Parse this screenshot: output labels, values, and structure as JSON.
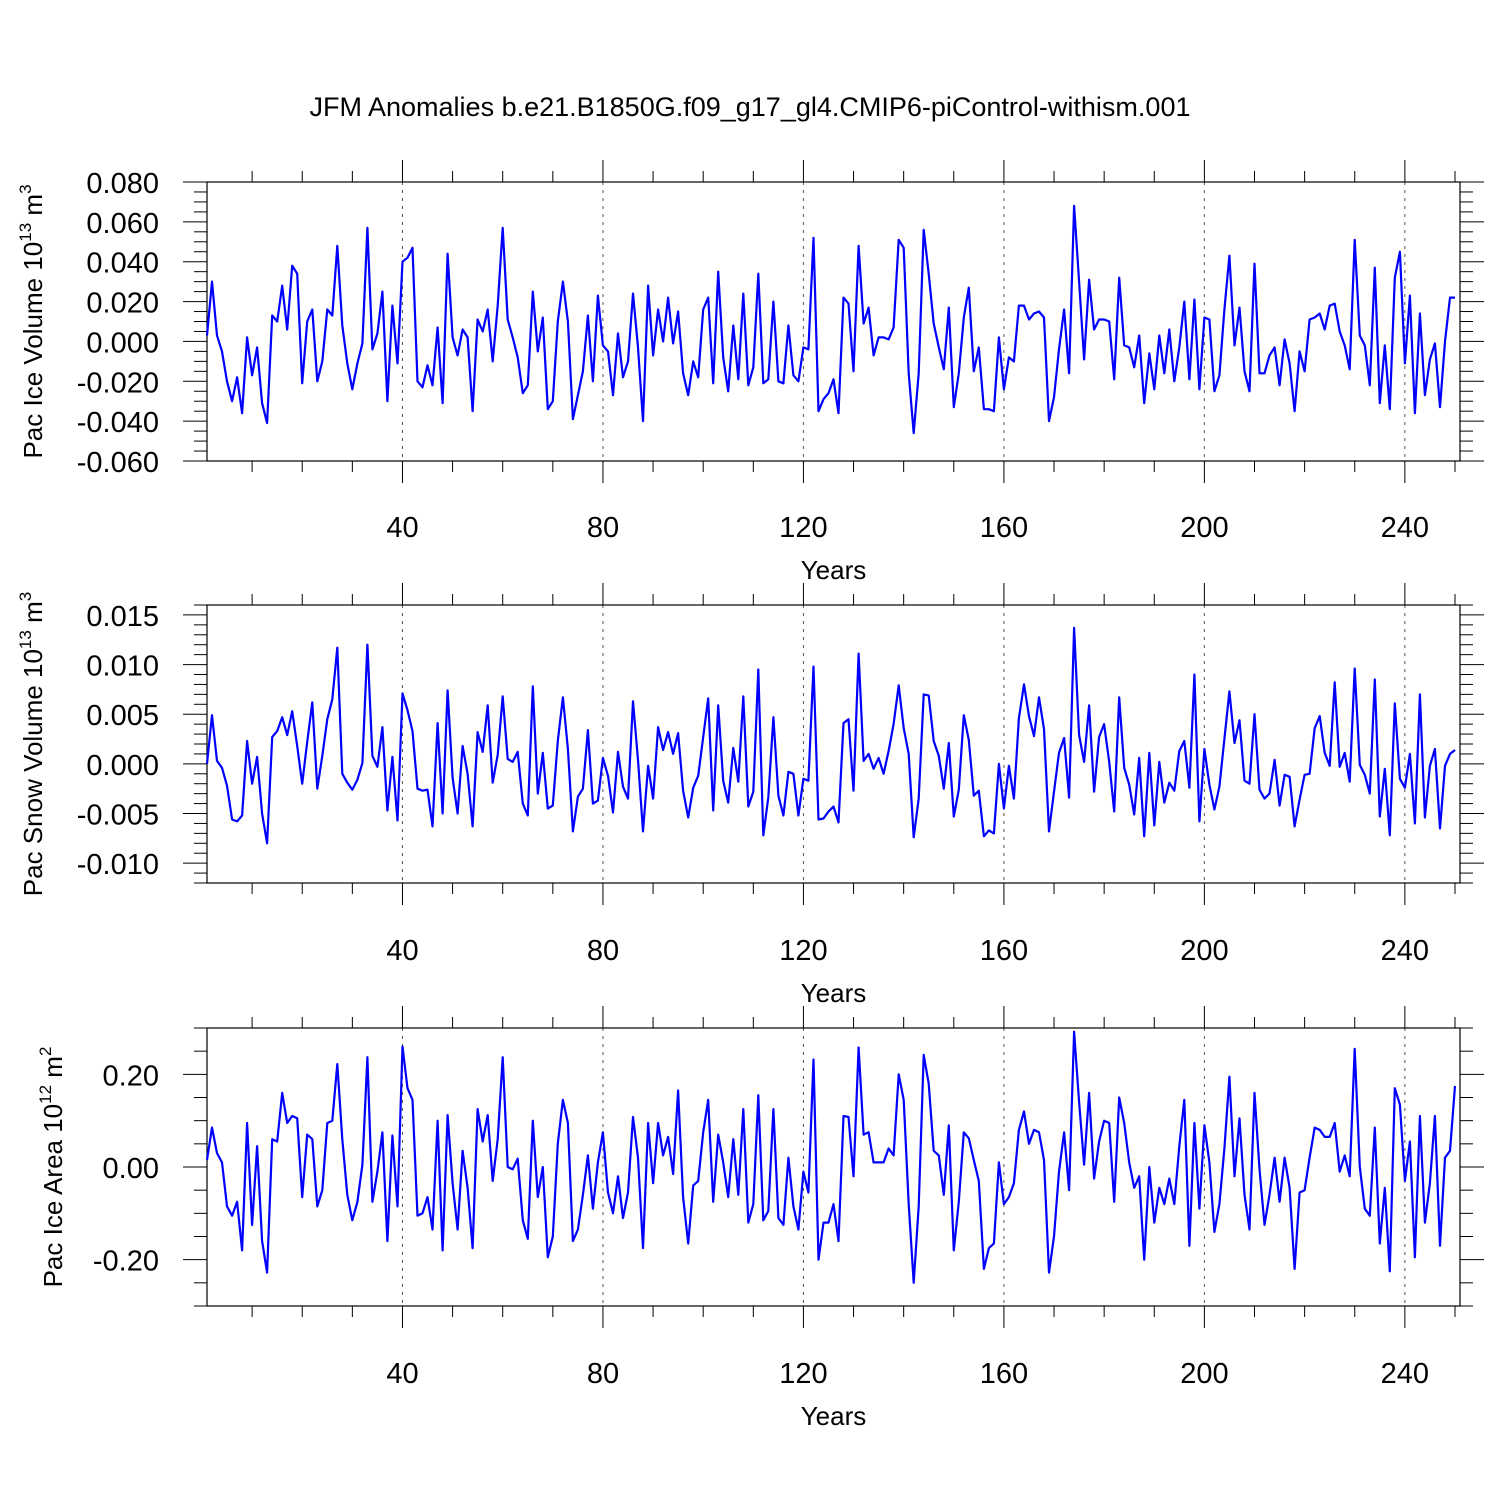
{
  "title": "JFM Anomalies b.e21.B1850G.f09_g17_gl4.CMIP6-piControl-withism.001",
  "colors": {
    "series": "#0000ff",
    "axes": "#000000",
    "grid": "#555555"
  },
  "chart_data": [
    {
      "type": "line",
      "name": "pac-ice-volume",
      "ylabel": {
        "base": "Pac Ice Volume 10",
        "exp": "13",
        "unit": " m",
        "unit_exp": "3"
      },
      "xlabel": "Years",
      "xlim": [
        1,
        251
      ],
      "ylim": [
        -0.06,
        0.08
      ],
      "yticks": [
        -0.06,
        -0.04,
        -0.02,
        0.0,
        0.02,
        0.04,
        0.06,
        0.08
      ],
      "ytick_labels": [
        "-0.060",
        "-0.040",
        "-0.020",
        "0.000",
        "0.020",
        "0.040",
        "0.060",
        "0.080"
      ],
      "yminor": 0.005,
      "xticks": [
        40,
        80,
        120,
        160,
        200,
        240
      ],
      "xtick_labels": [
        "40",
        "80",
        "120",
        "160",
        "200",
        "240"
      ],
      "xminor": 10,
      "grid_x": true,
      "y": [
        0.003,
        0.03,
        0.003,
        -0.005,
        -0.02,
        -0.03,
        -0.018,
        -0.036,
        0.002,
        -0.017,
        -0.003,
        -0.031,
        -0.041,
        0.013,
        0.01,
        0.028,
        0.006,
        0.038,
        0.034,
        -0.021,
        0.01,
        0.016,
        -0.02,
        -0.01,
        0.016,
        0.013,
        0.048,
        0.008,
        -0.011,
        -0.024,
        -0.011,
        -0.001,
        0.057,
        -0.004,
        0.004,
        0.025,
        -0.03,
        0.018,
        -0.011,
        0.04,
        0.042,
        0.047,
        -0.02,
        -0.023,
        -0.012,
        -0.022,
        0.007,
        -0.031,
        0.044,
        0.002,
        -0.007,
        0.006,
        0.002,
        -0.035,
        0.011,
        0.005,
        0.016,
        -0.01,
        0.018,
        0.057,
        0.011,
        0.002,
        -0.008,
        -0.026,
        -0.022,
        0.025,
        -0.005,
        0.012,
        -0.034,
        -0.03,
        0.01,
        0.03,
        0.01,
        -0.039,
        -0.027,
        -0.015,
        0.013,
        -0.02,
        0.023,
        -0.002,
        -0.005,
        -0.027,
        0.004,
        -0.018,
        -0.01,
        0.024,
        -0.003,
        -0.04,
        0.028,
        -0.007,
        0.016,
        0.0,
        0.022,
        -0.001,
        0.015,
        -0.016,
        -0.027,
        -0.01,
        -0.018,
        0.016,
        0.022,
        -0.021,
        0.035,
        -0.008,
        -0.025,
        0.008,
        -0.019,
        0.024,
        -0.022,
        -0.013,
        0.034,
        -0.021,
        -0.019,
        0.02,
        -0.02,
        -0.021,
        0.008,
        -0.017,
        -0.02,
        -0.003,
        -0.004,
        0.052,
        -0.035,
        -0.029,
        -0.026,
        -0.019,
        -0.036,
        0.022,
        0.019,
        -0.015,
        0.048,
        0.009,
        0.017,
        -0.007,
        0.002,
        0.002,
        0.001,
        0.007,
        0.051,
        0.047,
        -0.016,
        -0.046,
        -0.016,
        0.056,
        0.034,
        0.009,
        -0.003,
        -0.014,
        0.017,
        -0.033,
        -0.016,
        0.012,
        0.027,
        -0.015,
        -0.003,
        -0.034,
        -0.034,
        -0.035,
        0.002,
        -0.024,
        -0.008,
        -0.01,
        0.018,
        0.018,
        0.011,
        0.014,
        0.015,
        0.012,
        -0.04,
        -0.028,
        -0.004,
        0.016,
        -0.016,
        0.068,
        0.03,
        -0.009,
        0.031,
        0.006,
        0.011,
        0.011,
        0.01,
        -0.019,
        0.032,
        -0.002,
        -0.003,
        -0.013,
        0.003,
        -0.031,
        -0.006,
        -0.024,
        0.003,
        -0.016,
        0.006,
        -0.02,
        -0.003,
        0.02,
        -0.019,
        0.021,
        -0.024,
        0.012,
        0.011,
        -0.025,
        -0.017,
        0.016,
        0.043,
        -0.002,
        0.017,
        -0.015,
        -0.025,
        0.039,
        -0.016,
        -0.016,
        -0.007,
        -0.003,
        -0.022,
        0.001,
        -0.011,
        -0.035,
        -0.005,
        -0.015,
        0.011,
        0.012,
        0.014,
        0.006,
        0.018,
        0.019,
        0.005,
        -0.002,
        -0.014,
        0.051,
        0.003,
        -0.002,
        -0.022,
        0.037,
        -0.031,
        -0.002,
        -0.034,
        0.032,
        0.045,
        -0.011,
        0.023,
        -0.036,
        0.014,
        -0.027,
        -0.009,
        -0.001,
        -0.033,
        0.0,
        0.022,
        0.022
      ]
    },
    {
      "type": "line",
      "name": "pac-snow-volume",
      "ylabel": {
        "base": "Pac Snow Volume 10",
        "exp": "13",
        "unit": " m",
        "unit_exp": "3"
      },
      "xlabel": "Years",
      "xlim": [
        1,
        251
      ],
      "ylim": [
        -0.012,
        0.016
      ],
      "yticks": [
        -0.01,
        -0.005,
        0.0,
        0.005,
        0.01,
        0.015
      ],
      "ytick_labels": [
        "-0.010",
        "-0.005",
        "0.000",
        "0.005",
        "0.010",
        "0.015"
      ],
      "yminor": 0.001,
      "xticks": [
        40,
        80,
        120,
        160,
        200,
        240
      ],
      "xtick_labels": [
        "40",
        "80",
        "120",
        "160",
        "200",
        "240"
      ],
      "xminor": 10,
      "grid_x": true,
      "y": [
        0.0,
        0.0049,
        0.0003,
        -0.0004,
        -0.0022,
        -0.0056,
        -0.0058,
        -0.0052,
        0.0023,
        -0.002,
        0.0007,
        -0.005,
        -0.008,
        0.0027,
        0.0033,
        0.0047,
        0.0029,
        0.0053,
        0.0018,
        -0.002,
        0.0022,
        0.0062,
        -0.0025,
        0.0008,
        0.0045,
        0.0065,
        0.0117,
        -0.001,
        -0.0019,
        -0.0026,
        -0.0016,
        0.0001,
        0.012,
        0.0008,
        -0.0003,
        0.0037,
        -0.0047,
        0.0007,
        -0.0057,
        0.0071,
        0.0054,
        0.0033,
        -0.0025,
        -0.0027,
        -0.0026,
        -0.0063,
        0.0041,
        -0.005,
        0.0074,
        -0.0014,
        -0.005,
        0.0018,
        -0.001,
        -0.0063,
        0.0032,
        0.0012,
        0.0059,
        -0.0019,
        0.0009,
        0.0068,
        0.0005,
        0.0002,
        0.0012,
        -0.004,
        -0.0052,
        0.0078,
        -0.003,
        0.0011,
        -0.0045,
        -0.0042,
        0.0023,
        0.0067,
        0.0015,
        -0.0068,
        -0.0033,
        -0.0025,
        0.0034,
        -0.004,
        -0.0037,
        0.0006,
        -0.0012,
        -0.0049,
        0.0012,
        -0.0023,
        -0.0035,
        0.0063,
        0.0004,
        -0.0068,
        -0.0002,
        -0.0035,
        0.0037,
        0.0014,
        0.0032,
        0.001,
        0.0031,
        -0.0027,
        -0.0054,
        -0.0024,
        -0.0012,
        0.0027,
        0.0066,
        -0.0047,
        0.0059,
        -0.0017,
        -0.0039,
        0.0016,
        -0.0018,
        0.0068,
        -0.0043,
        -0.0028,
        0.0095,
        -0.0072,
        -0.0034,
        0.0047,
        -0.0032,
        -0.0052,
        -0.0008,
        -0.001,
        -0.0052,
        -0.0015,
        -0.0017,
        0.0098,
        -0.0056,
        -0.0055,
        -0.0048,
        -0.0043,
        -0.0059,
        0.0041,
        0.0045,
        -0.0027,
        0.0111,
        0.0003,
        0.001,
        -0.0005,
        0.0006,
        -0.001,
        0.0013,
        0.004,
        0.0079,
        0.0036,
        0.001,
        -0.0074,
        -0.0035,
        0.007,
        0.0069,
        0.0023,
        0.0008,
        -0.0025,
        0.0021,
        -0.0053,
        -0.0026,
        0.0049,
        0.0024,
        -0.0032,
        -0.0027,
        -0.0073,
        -0.0067,
        -0.007,
        0.0,
        -0.0045,
        -0.0002,
        -0.0035,
        0.0046,
        0.008,
        0.0048,
        0.0028,
        0.0067,
        0.0035,
        -0.0068,
        -0.0028,
        0.0011,
        0.0026,
        -0.0034,
        0.0137,
        0.0029,
        0.0002,
        0.0059,
        -0.0028,
        0.0027,
        0.004,
        0.0002,
        -0.0048,
        0.0067,
        -0.0004,
        -0.0021,
        -0.0051,
        0.0006,
        -0.0073,
        0.0011,
        -0.0062,
        0.0002,
        -0.0039,
        -0.0019,
        -0.0027,
        0.0013,
        0.0023,
        -0.0024,
        0.009,
        -0.0058,
        0.0015,
        -0.0021,
        -0.0046,
        -0.0023,
        0.0025,
        0.0073,
        0.0021,
        0.0044,
        -0.0017,
        -0.002,
        0.005,
        -0.0026,
        -0.0035,
        -0.003,
        0.0004,
        -0.0042,
        -0.0011,
        -0.0013,
        -0.0063,
        -0.0036,
        -0.0011,
        -0.001,
        0.0036,
        0.0048,
        0.0011,
        -0.0002,
        0.0082,
        -0.0003,
        0.0011,
        -0.0018,
        0.0096,
        -0.0001,
        -0.0011,
        -0.003,
        0.0085,
        -0.0053,
        -0.0005,
        -0.0072,
        0.0061,
        -0.0015,
        -0.0024,
        0.001,
        -0.006,
        0.007,
        -0.0054,
        -0.0002,
        0.0015,
        -0.0065,
        -0.0002,
        0.001,
        0.0014
      ]
    },
    {
      "type": "line",
      "name": "pac-ice-area",
      "ylabel": {
        "base": "Pac Ice Area 10",
        "exp": "12",
        "unit": " m",
        "unit_exp": "2"
      },
      "xlabel": "Years",
      "xlim": [
        1,
        251
      ],
      "ylim": [
        -0.3,
        0.3
      ],
      "yticks": [
        -0.2,
        0.0,
        0.2
      ],
      "ytick_labels": [
        "-0.20",
        "0.00",
        "0.20"
      ],
      "yminor": 0.05,
      "xticks": [
        40,
        80,
        120,
        160,
        200,
        240
      ],
      "xtick_labels": [
        "40",
        "80",
        "120",
        "160",
        "200",
        "240"
      ],
      "xminor": 10,
      "grid_x": true,
      "y": [
        0.015,
        0.085,
        0.03,
        0.01,
        -0.085,
        -0.105,
        -0.075,
        -0.18,
        0.095,
        -0.125,
        0.045,
        -0.16,
        -0.228,
        0.06,
        0.055,
        0.16,
        0.095,
        0.11,
        0.105,
        -0.065,
        0.07,
        0.06,
        -0.085,
        -0.05,
        0.095,
        0.1,
        0.222,
        0.06,
        -0.06,
        -0.115,
        -0.075,
        0.005,
        0.237,
        -0.075,
        -0.01,
        0.075,
        -0.16,
        0.068,
        -0.085,
        0.26,
        0.17,
        0.145,
        -0.105,
        -0.1,
        -0.065,
        -0.135,
        0.1,
        -0.18,
        0.112,
        -0.035,
        -0.135,
        0.035,
        -0.045,
        -0.175,
        0.125,
        0.055,
        0.112,
        -0.03,
        0.06,
        0.237,
        0.0,
        -0.005,
        0.018,
        -0.115,
        -0.155,
        0.1,
        -0.065,
        0.0,
        -0.195,
        -0.15,
        0.05,
        0.145,
        0.095,
        -0.16,
        -0.135,
        -0.06,
        0.025,
        -0.09,
        0.01,
        0.075,
        -0.055,
        -0.1,
        -0.02,
        -0.11,
        -0.055,
        0.108,
        0.02,
        -0.175,
        0.095,
        -0.035,
        0.095,
        0.025,
        0.065,
        -0.015,
        0.165,
        -0.065,
        -0.165,
        -0.04,
        -0.03,
        0.075,
        0.145,
        -0.075,
        0.07,
        0.01,
        -0.065,
        0.06,
        -0.06,
        0.125,
        -0.12,
        -0.08,
        0.155,
        -0.115,
        -0.095,
        0.125,
        -0.11,
        -0.125,
        0.02,
        -0.085,
        -0.135,
        -0.01,
        -0.055,
        0.232,
        -0.2,
        -0.12,
        -0.12,
        -0.08,
        -0.16,
        0.11,
        0.108,
        -0.02,
        0.258,
        0.07,
        0.075,
        0.01,
        0.01,
        0.01,
        0.04,
        0.025,
        0.2,
        0.145,
        -0.08,
        -0.25,
        -0.085,
        0.242,
        0.18,
        0.035,
        0.025,
        -0.06,
        0.09,
        -0.18,
        -0.075,
        0.075,
        0.062,
        0.015,
        -0.03,
        -0.22,
        -0.175,
        -0.165,
        0.01,
        -0.08,
        -0.065,
        -0.035,
        0.08,
        0.12,
        0.05,
        0.08,
        0.075,
        0.015,
        -0.228,
        -0.15,
        -0.01,
        0.075,
        -0.05,
        0.292,
        0.14,
        0.005,
        0.16,
        -0.025,
        0.055,
        0.1,
        0.095,
        -0.075,
        0.15,
        0.095,
        0.01,
        -0.045,
        -0.02,
        -0.2,
        0.0,
        -0.12,
        -0.045,
        -0.08,
        -0.025,
        -0.08,
        0.045,
        0.145,
        -0.17,
        0.095,
        -0.09,
        0.09,
        0.01,
        -0.14,
        -0.08,
        0.04,
        0.195,
        -0.02,
        0.105,
        -0.06,
        -0.135,
        0.16,
        -0.005,
        -0.125,
        -0.06,
        0.02,
        -0.075,
        0.02,
        -0.045,
        -0.22,
        -0.055,
        -0.05,
        0.02,
        0.085,
        0.08,
        0.065,
        0.065,
        0.095,
        -0.01,
        0.025,
        -0.02,
        0.255,
        0.0,
        -0.09,
        -0.105,
        0.085,
        -0.165,
        -0.045,
        -0.225,
        0.17,
        0.135,
        -0.03,
        0.055,
        -0.195,
        0.11,
        -0.12,
        -0.035,
        0.11,
        -0.17,
        0.02,
        0.035,
        0.175
      ]
    }
  ]
}
